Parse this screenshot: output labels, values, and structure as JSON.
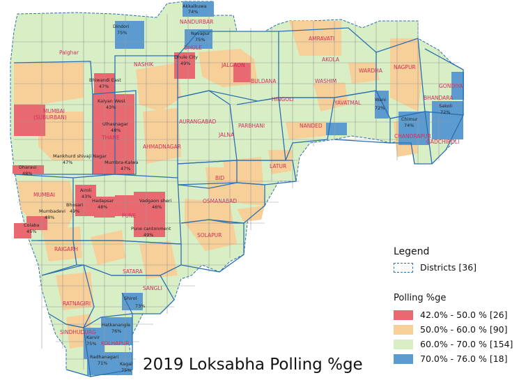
{
  "map": {
    "title": "2019 Loksabha Polling %ge",
    "colors": {
      "c1": "#e8696f",
      "c2": "#f7cf98",
      "c3": "#d8efc6",
      "c4": "#5b9bd0",
      "border": "#2b6fb0"
    },
    "districts": [
      "NANDURBAR",
      "DHULE",
      "NASHIK",
      "JALGAON",
      "AMRAVATI",
      "AKOLA",
      "BULDANA",
      "WASHIM",
      "WARDHA",
      "NAGPUR",
      "GONDIYA",
      "BHANDARA",
      "HINGOLI",
      "YAVATMAL",
      "NANDED",
      "CHANDRAPUR",
      "GADCHIROLI",
      "Palghar",
      "MUMBAI (SUBURBAN)",
      "THANE",
      "AURANGABAD",
      "JALNA",
      "PARBHANI",
      "LATUR",
      "AHMADNAGAR",
      "BID",
      "OSMANABAD",
      "MUMBAI",
      "PUNE",
      "SOLAPUR",
      "RAIGARH",
      "SATARA",
      "SANGLI",
      "RATNAGIRI",
      "SINDHUDURG",
      "KOLHAPUR"
    ],
    "constituencies": [
      {
        "name": "Akkalkuwa",
        "value": "74%"
      },
      {
        "name": "Dindori",
        "value": "75%"
      },
      {
        "name": "Navapur",
        "value": "75%"
      },
      {
        "name": "Dhule City",
        "value": "49%"
      },
      {
        "name": "Bhiwandi East",
        "value": "47%"
      },
      {
        "name": "Kalyan West",
        "value": "43%"
      },
      {
        "name": "Ulhasnagar",
        "value": "48%"
      },
      {
        "name": "Mankhurd shivaji Nagar",
        "value": "47%"
      },
      {
        "name": "Mumbra-Kalwa",
        "value": "47%"
      },
      {
        "name": "Dharavi",
        "value": "48%"
      },
      {
        "name": "Airoli",
        "value": "43%"
      },
      {
        "name": "Hadapsar",
        "value": "48%"
      },
      {
        "name": "Bhosari",
        "value": "49%"
      },
      {
        "name": "Vadgaon sheri",
        "value": "46%"
      },
      {
        "name": "Mumbadevi",
        "value": "48%"
      },
      {
        "name": "Colaba",
        "value": "45%"
      },
      {
        "name": "Pune cantonment",
        "value": "49%"
      },
      {
        "name": "Wani",
        "value": "72%"
      },
      {
        "name": "Chimur",
        "value": "74%"
      },
      {
        "name": "Sakoli",
        "value": "72%"
      },
      {
        "name": "Shirol",
        "value": "73%"
      },
      {
        "name": "Hatkanangle",
        "value": "76%"
      },
      {
        "name": "Karvir",
        "value": "75%"
      },
      {
        "name": "Radhanagari",
        "value": "71%"
      },
      {
        "name": "Kagal",
        "value": "75%"
      }
    ]
  },
  "legend": {
    "title": "Legend",
    "districts_label": "Districts [36]",
    "polling_title": "Polling %ge",
    "classes": [
      {
        "label": "42.0% - 50.0 % [26]",
        "color": "#e8696f"
      },
      {
        "label": "50.0% - 60.0 % [90]",
        "color": "#f7cf98"
      },
      {
        "label": "60.0% - 70.0 % [154]",
        "color": "#d8efc6"
      },
      {
        "label": "70.0% - 76.0 % [18]",
        "color": "#5b9bd0"
      }
    ]
  }
}
